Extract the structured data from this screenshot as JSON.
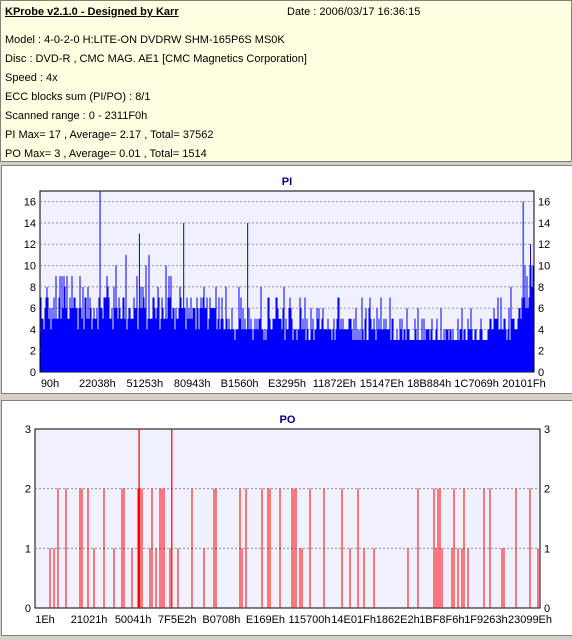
{
  "info": {
    "app_title": "KProbe v2.1.0 - Designed by Karr",
    "date": "Date : 2006/03/17 16:36:15",
    "model": "Model : 4-0-2-0 H:LITE-ON DVDRW SHM-165P6S MS0K",
    "disc": "Disc : DVD-R , CMC MAG. AE1 [CMC Magnetics Corporation]",
    "speed": "Speed : 4x",
    "ecc": "ECC blocks sum (PI/PO) : 8/1",
    "range": "Scanned range : 0 - 2311F0h",
    "pi_summary": "PI Max= 17 , Average= 2.17 , Total= 37562",
    "po_summary": "PO Max= 3 , Average= 0.01 , Total= 1514"
  },
  "colors": {
    "pi": "#0000ff",
    "po": "#ff0000",
    "panel_bg": "#f0f0ff",
    "title": "#000080"
  },
  "chart_data": [
    {
      "type": "bar",
      "title": "PI",
      "ylim": [
        0,
        17
      ],
      "yticks": [
        0,
        2,
        4,
        6,
        8,
        10,
        12,
        14,
        16
      ],
      "xtick_labels": [
        "90h",
        "22038h",
        "51253h",
        "80943h",
        "B1560h",
        "E3295h",
        "11872Eh",
        "15147Eh",
        "18B884h",
        "1C7069h",
        "20101Fh"
      ],
      "grid": true,
      "envelope": {
        "x": [
          0,
          0.03,
          0.08,
          0.13,
          0.18,
          0.25,
          0.32,
          0.38,
          0.43,
          0.5,
          0.56,
          0.62,
          0.68,
          0.73,
          0.78,
          0.83,
          0.88,
          0.93,
          0.97,
          1.0
        ],
        "base": [
          4,
          4,
          4,
          4,
          4,
          4,
          4,
          3.5,
          3,
          3,
          3,
          3,
          2.5,
          2.5,
          2.5,
          2.5,
          2.5,
          2.5,
          4,
          8
        ],
        "peak": [
          8,
          10,
          12,
          12,
          11,
          11,
          10,
          9,
          8,
          8,
          7,
          7,
          7,
          7,
          6,
          6,
          6,
          7,
          10,
          14
        ]
      },
      "spikes": [
        {
          "x": 0.12,
          "y": 17
        },
        {
          "x": 0.2,
          "y": 13
        },
        {
          "x": 0.29,
          "y": 14
        },
        {
          "x": 0.42,
          "y": 14
        },
        {
          "x": 0.98,
          "y": 16
        },
        {
          "x": 0.995,
          "y": 12
        }
      ]
    },
    {
      "type": "bar",
      "title": "PO",
      "ylim": [
        0,
        3
      ],
      "yticks": [
        0,
        1,
        2,
        3
      ],
      "xtick_labels": [
        "1Eh",
        "21021h",
        "50041h",
        "7F5E2h",
        "B0708h",
        "E169Eh",
        "115700h",
        "14E01Fh",
        "1862E2h",
        "1BF8F6h",
        "1F9263h",
        "23099Eh"
      ],
      "grid": true,
      "spikes_3": [
        0.205,
        0.27
      ],
      "density_profile": {
        "x": [
          0,
          0.1,
          0.2,
          0.3,
          0.4,
          0.5,
          0.6,
          0.7,
          0.8,
          0.9,
          1.0
        ],
        "rate": [
          0.7,
          0.65,
          0.6,
          0.6,
          0.5,
          0.4,
          0.3,
          0.3,
          0.35,
          0.35,
          0.45
        ]
      }
    }
  ]
}
